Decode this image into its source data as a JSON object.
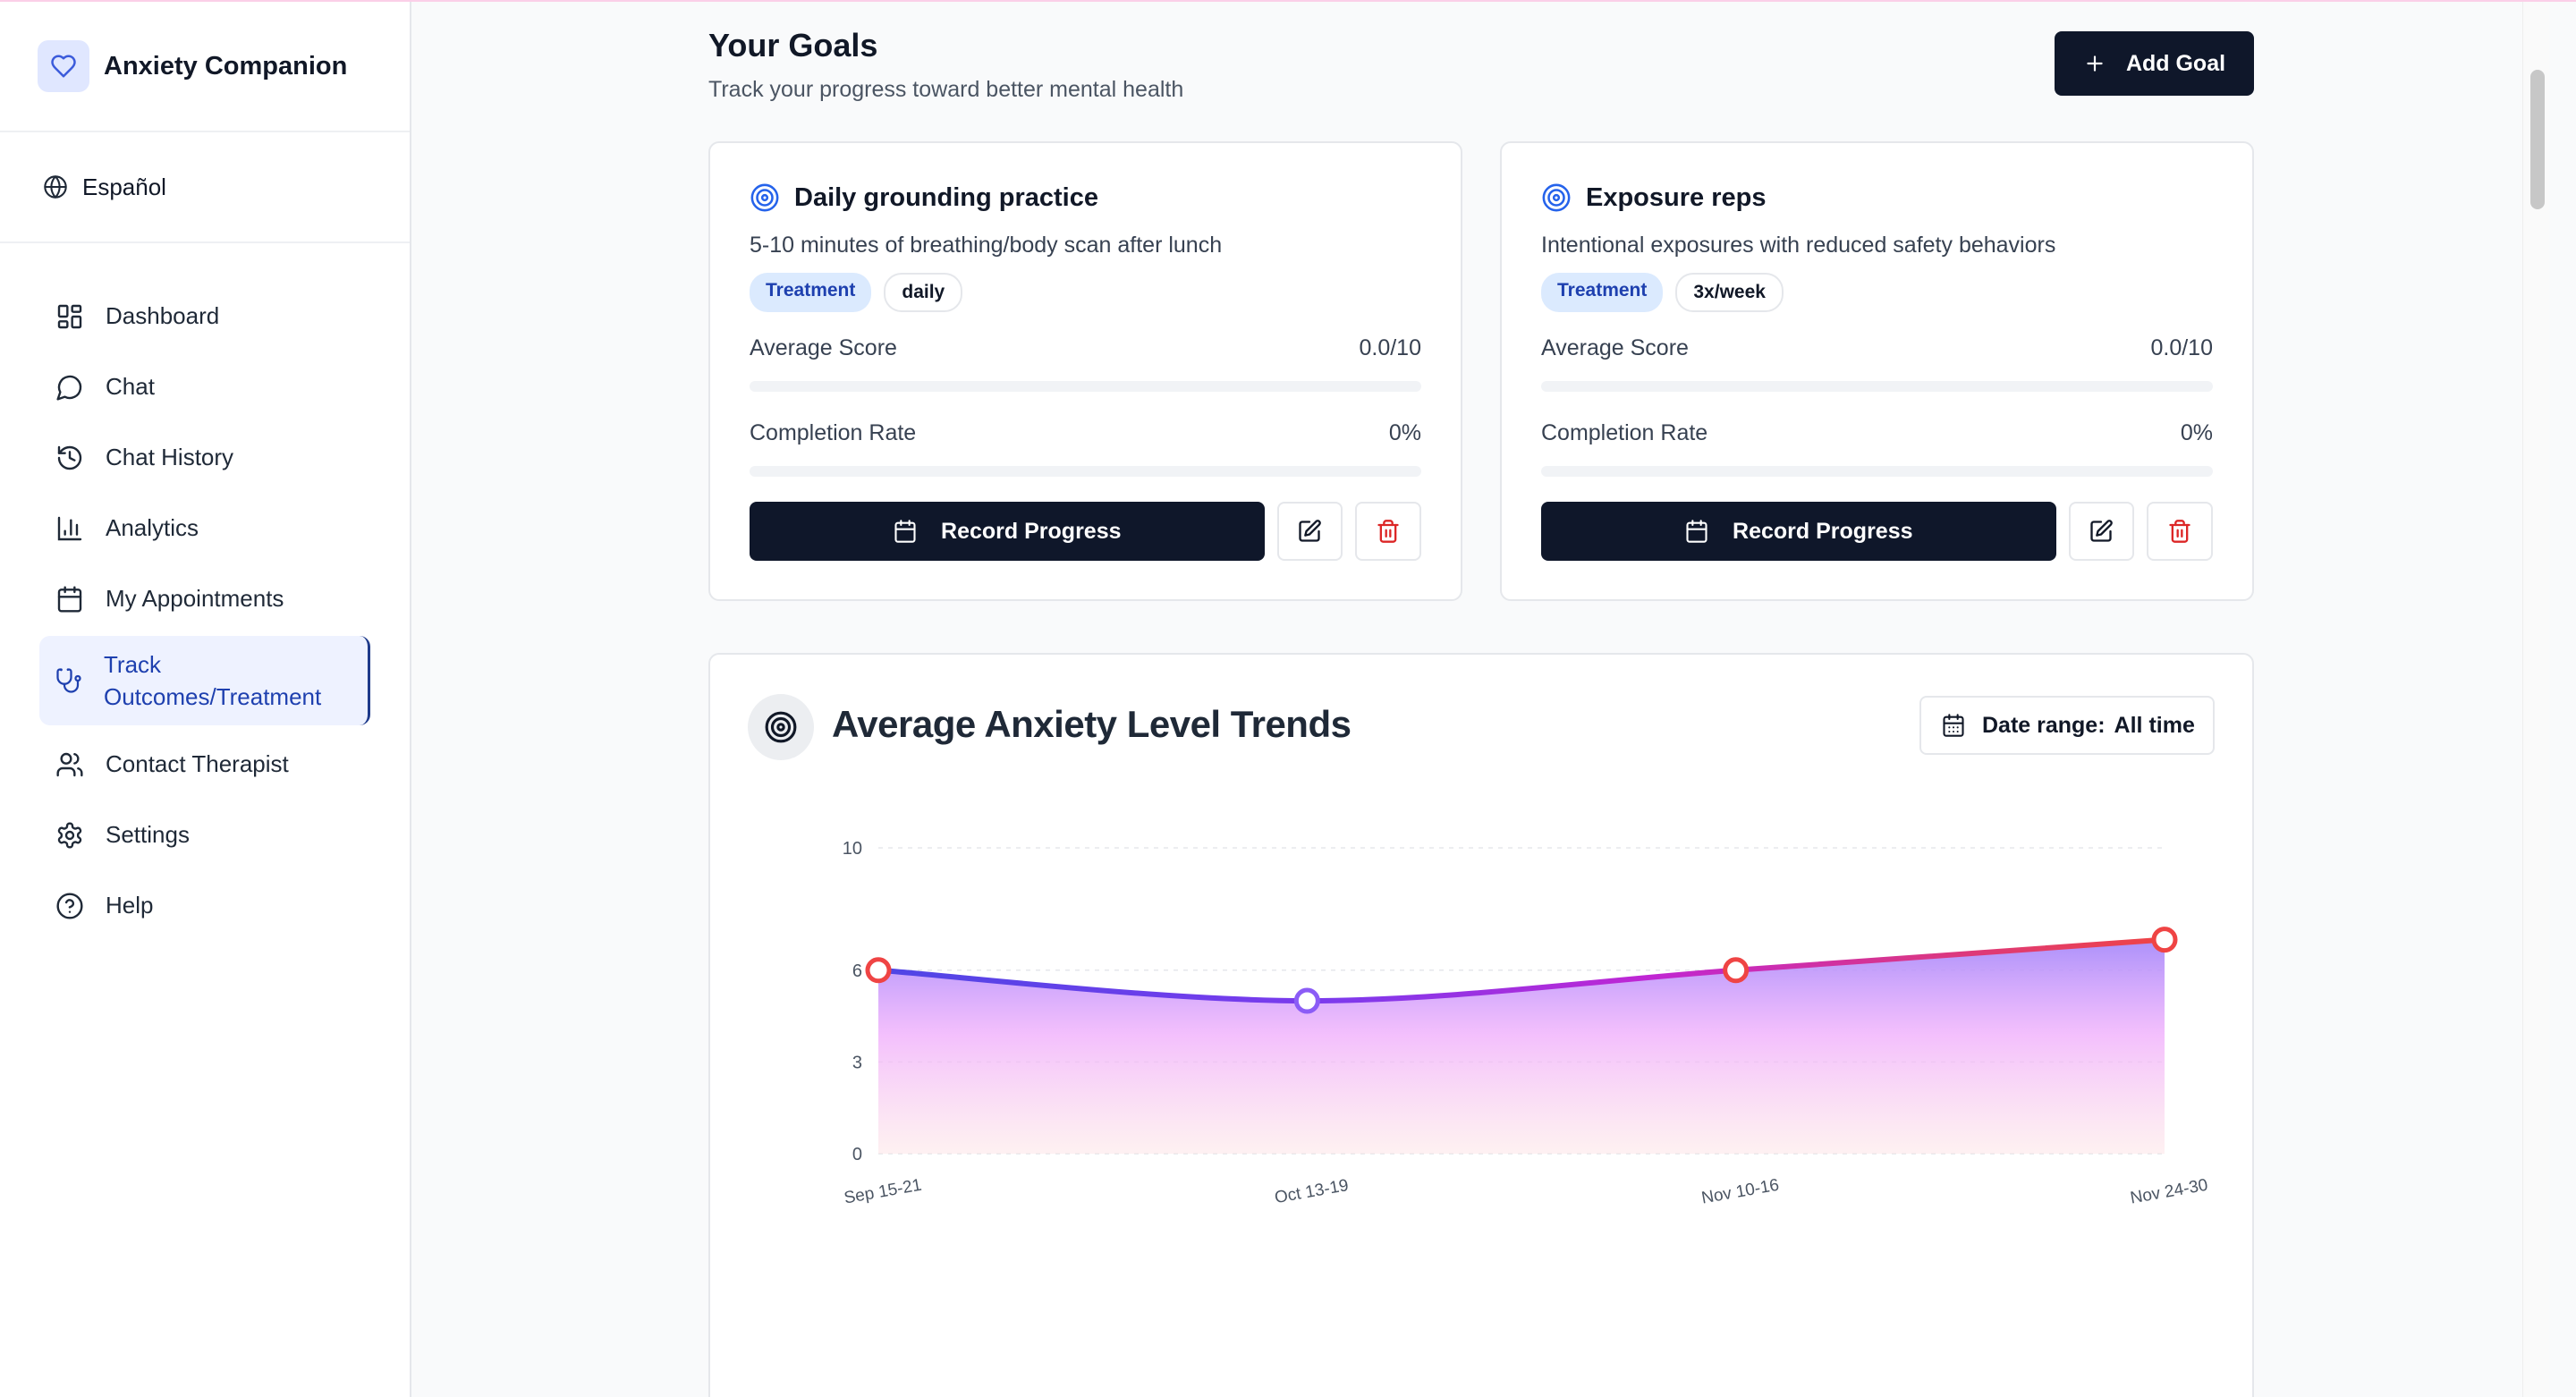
{
  "app": {
    "name": "Anxiety Companion"
  },
  "language": {
    "label": "Español"
  },
  "nav": {
    "items": [
      {
        "label": "Dashboard"
      },
      {
        "label": "Chat"
      },
      {
        "label": "Chat History"
      },
      {
        "label": "Analytics"
      },
      {
        "label": "My Appointments"
      },
      {
        "label": "Track Outcomes/Treatment",
        "active": true
      },
      {
        "label": "Contact Therapist"
      },
      {
        "label": "Settings"
      },
      {
        "label": "Help"
      }
    ]
  },
  "goals": {
    "title": "Your Goals",
    "subtitle": "Track your progress toward better mental health",
    "add_label": "Add Goal",
    "cards": [
      {
        "title": "Daily grounding practice",
        "description": "5-10 minutes of breathing/body scan after lunch",
        "tags": [
          "Treatment",
          "daily"
        ],
        "avg_label": "Average Score",
        "avg_value": "0.0/10",
        "avg_fraction": 0,
        "completion_label": "Completion Rate",
        "completion_value": "0%",
        "completion_fraction": 0,
        "record_label": "Record Progress"
      },
      {
        "title": "Exposure reps",
        "description": "Intentional exposures with reduced safety behaviors",
        "tags": [
          "Treatment",
          "3x/week"
        ],
        "avg_label": "Average Score",
        "avg_value": "0.0/10",
        "avg_fraction": 0,
        "completion_label": "Completion Rate",
        "completion_value": "0%",
        "completion_fraction": 0,
        "record_label": "Record Progress"
      }
    ]
  },
  "trend": {
    "title": "Average Anxiety Level Trends",
    "date_label": "Date range:",
    "date_value": "All time"
  },
  "colors": {
    "primary_dark": "#0f172a",
    "accent_blue": "#1e40af",
    "line_start": "#4f46e5",
    "line_mid": "#c026d3",
    "line_end": "#ef4444",
    "delete_red": "#dc2626"
  },
  "chart_data": {
    "type": "area",
    "title": "Average Anxiety Level Trends",
    "categories": [
      "Sep 15-21",
      "Oct 13-19",
      "Nov 10-16",
      "Nov 24-30"
    ],
    "values": [
      6,
      5,
      6,
      7
    ],
    "ylim": [
      0,
      10
    ],
    "yticks": [
      0,
      3,
      6,
      10
    ],
    "grid": true,
    "legend": "none"
  }
}
